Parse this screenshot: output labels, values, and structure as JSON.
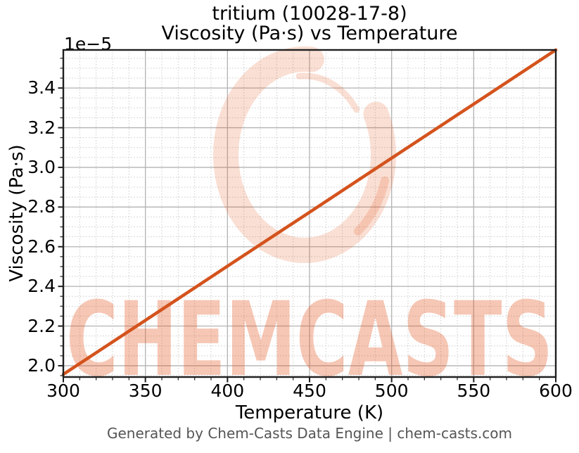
{
  "header": {
    "title_line1": "tritium (10028-17-8)",
    "title_line2": "Viscosity (Pa·s) vs Temperature"
  },
  "footer": {
    "text": "Generated by Chem-Casts Data Engine | chem-casts.com",
    "color": "#555555"
  },
  "watermark": {
    "text": "CHEMCASTS",
    "brand_color": "#e4531b",
    "text_opacity": 0.32,
    "logo_opacity": 0.19
  },
  "chart_data": {
    "type": "line",
    "title": "tritium (10028-17-8)\nViscosity (Pa·s) vs Temperature",
    "xlabel": "Temperature (K)",
    "ylabel": "Viscosity (Pa·s)",
    "y_offset_label": "1e−5",
    "y_unit_scale": "1e-5",
    "xlim": [
      300,
      600
    ],
    "ylim_scaled": [
      1.943,
      3.592
    ],
    "x_ticks": [
      300,
      350,
      400,
      450,
      500,
      550,
      600
    ],
    "y_ticks": [
      2.0,
      2.2,
      2.4,
      2.6,
      2.8,
      3.0,
      3.2,
      3.4
    ],
    "x_minor_step": 10,
    "y_minor_step": 0.05,
    "grid": {
      "enabled": true,
      "major_color": "#b2b2b2",
      "minor_color": "#cccccc",
      "minor_style": "dotted"
    },
    "legend": "none",
    "axes_color": "#1f1f1f",
    "series": [
      {
        "name": "viscosity",
        "color": "#d4531d",
        "x": [
          300,
          350,
          400,
          450,
          500,
          550,
          600
        ],
        "y_scaled": [
          1.957,
          2.229,
          2.502,
          2.774,
          3.047,
          3.319,
          3.592
        ]
      }
    ]
  }
}
